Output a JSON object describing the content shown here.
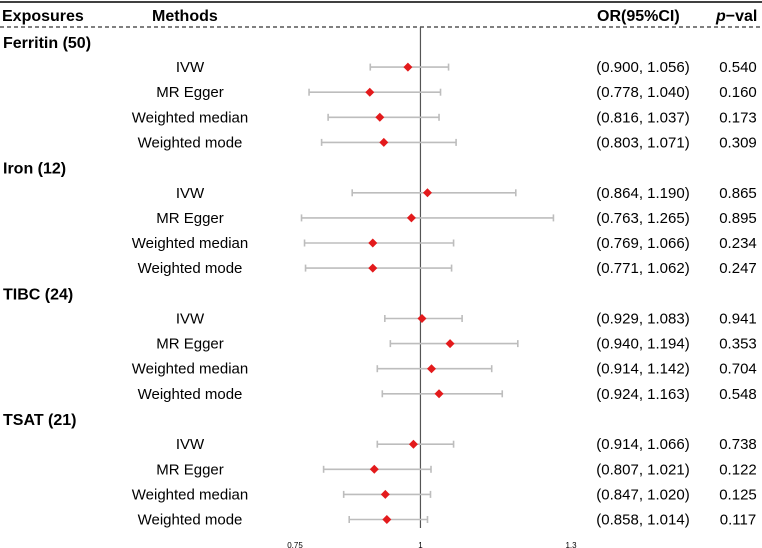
{
  "chart_data": {
    "type": "forest",
    "headers": {
      "exposures": "Exposures",
      "methods": "Methods",
      "or": "OR(95%CI)",
      "pval_italic": "p",
      "pval_rest": "−val"
    },
    "x_axis": {
      "range": [
        0.75,
        1.3
      ],
      "reference": 1,
      "ticks": [
        {
          "value": 0.75,
          "label": "0.75"
        },
        {
          "value": 1,
          "label": "1"
        },
        {
          "value": 1.3,
          "label": "1.3"
        }
      ]
    },
    "colors": {
      "point": "#e31a1c",
      "ci": "#bdbdbd",
      "reference_line": "#555555"
    },
    "groups": [
      {
        "name": "Ferritin (50)",
        "rows": [
          {
            "method": "IVW",
            "or": 0.975,
            "lower": 0.9,
            "upper": 1.056,
            "ci": "(0.900, 1.056)",
            "p": "0.540"
          },
          {
            "method": "MR Egger",
            "or": 0.899,
            "lower": 0.778,
            "upper": 1.04,
            "ci": "(0.778, 1.040)",
            "p": "0.160"
          },
          {
            "method": "Weighted median",
            "or": 0.919,
            "lower": 0.816,
            "upper": 1.037,
            "ci": "(0.816, 1.037)",
            "p": "0.173"
          },
          {
            "method": "Weighted mode",
            "or": 0.927,
            "lower": 0.803,
            "upper": 1.071,
            "ci": "(0.803, 1.071)",
            "p": "0.309"
          }
        ]
      },
      {
        "name": "Iron (12)",
        "rows": [
          {
            "method": "IVW",
            "or": 1.014,
            "lower": 0.864,
            "upper": 1.19,
            "ci": "(0.864, 1.190)",
            "p": "0.865"
          },
          {
            "method": "MR Egger",
            "or": 0.982,
            "lower": 0.763,
            "upper": 1.265,
            "ci": "(0.763, 1.265)",
            "p": "0.895"
          },
          {
            "method": "Weighted median",
            "or": 0.905,
            "lower": 0.769,
            "upper": 1.066,
            "ci": "(0.769, 1.066)",
            "p": "0.234"
          },
          {
            "method": "Weighted mode",
            "or": 0.905,
            "lower": 0.771,
            "upper": 1.062,
            "ci": "(0.771, 1.062)",
            "p": "0.247"
          }
        ]
      },
      {
        "name": "TIBC (24)",
        "rows": [
          {
            "method": "IVW",
            "or": 1.003,
            "lower": 0.929,
            "upper": 1.083,
            "ci": "(0.929, 1.083)",
            "p": "0.941"
          },
          {
            "method": "MR Egger",
            "or": 1.059,
            "lower": 0.94,
            "upper": 1.194,
            "ci": "(0.940, 1.194)",
            "p": "0.353"
          },
          {
            "method": "Weighted median",
            "or": 1.022,
            "lower": 0.914,
            "upper": 1.142,
            "ci": "(0.914, 1.142)",
            "p": "0.704"
          },
          {
            "method": "Weighted mode",
            "or": 1.037,
            "lower": 0.924,
            "upper": 1.163,
            "ci": "(0.924, 1.163)",
            "p": "0.548"
          }
        ]
      },
      {
        "name": "TSAT (21)",
        "rows": [
          {
            "method": "IVW",
            "or": 0.986,
            "lower": 0.914,
            "upper": 1.066,
            "ci": "(0.914, 1.066)",
            "p": "0.738"
          },
          {
            "method": "MR Egger",
            "or": 0.908,
            "lower": 0.807,
            "upper": 1.021,
            "ci": "(0.807, 1.021)",
            "p": "0.122"
          },
          {
            "method": "Weighted median",
            "or": 0.93,
            "lower": 0.847,
            "upper": 1.02,
            "ci": "(0.847, 1.020)",
            "p": "0.125"
          },
          {
            "method": "Weighted mode",
            "or": 0.933,
            "lower": 0.858,
            "upper": 1.014,
            "ci": "(0.858, 1.014)",
            "p": "0.117"
          }
        ]
      }
    ]
  }
}
